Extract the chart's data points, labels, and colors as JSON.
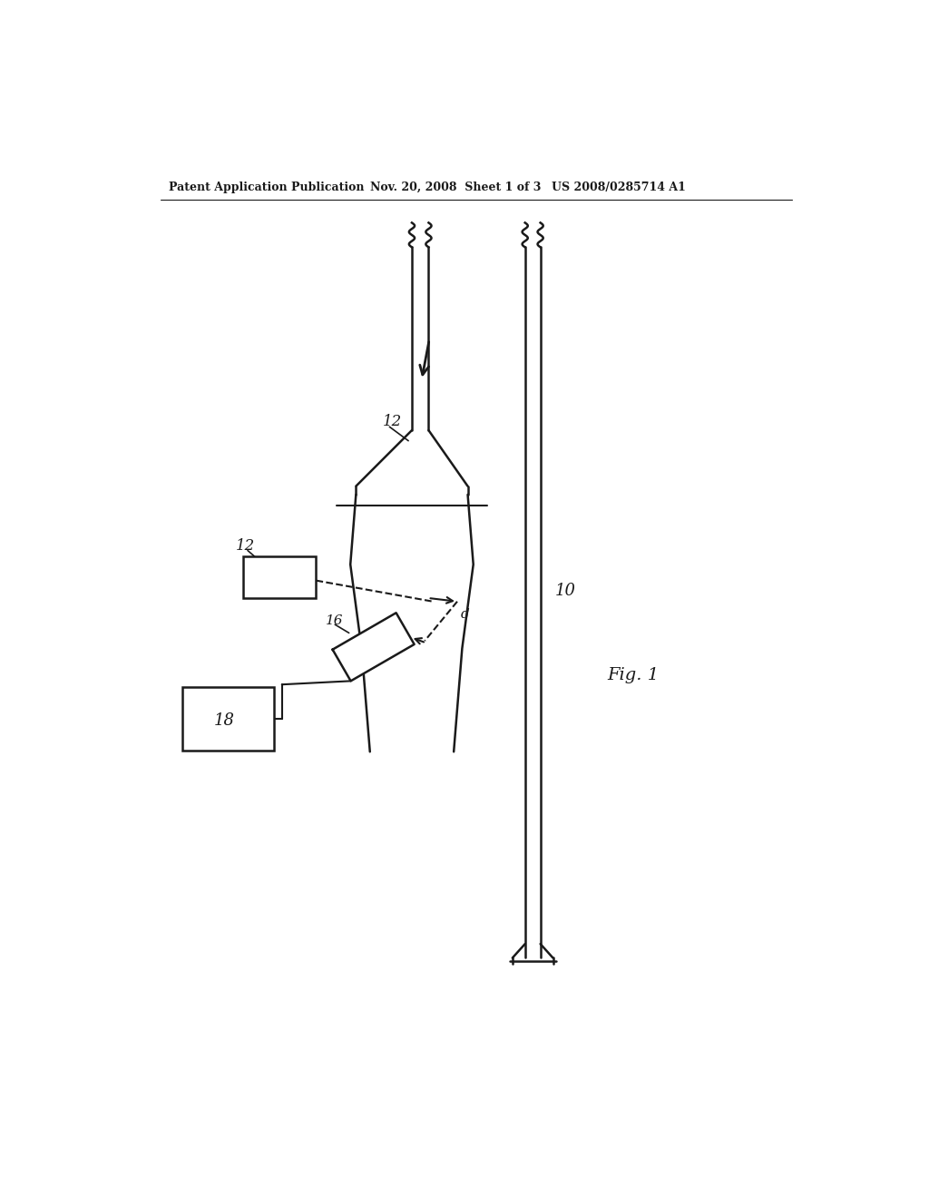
{
  "bg_color": "#ffffff",
  "line_color": "#1a1a1a",
  "header_text1": "Patent Application Publication",
  "header_text2": "Nov. 20, 2008  Sheet 1 of 3",
  "header_text3": "US 2008/0285714 A1",
  "fig_label": "Fig. 1",
  "label_10": "10",
  "label_12_pipe": "12",
  "label_12_src": "12",
  "label_16": "16",
  "label_18": "18",
  "label_d": "d"
}
